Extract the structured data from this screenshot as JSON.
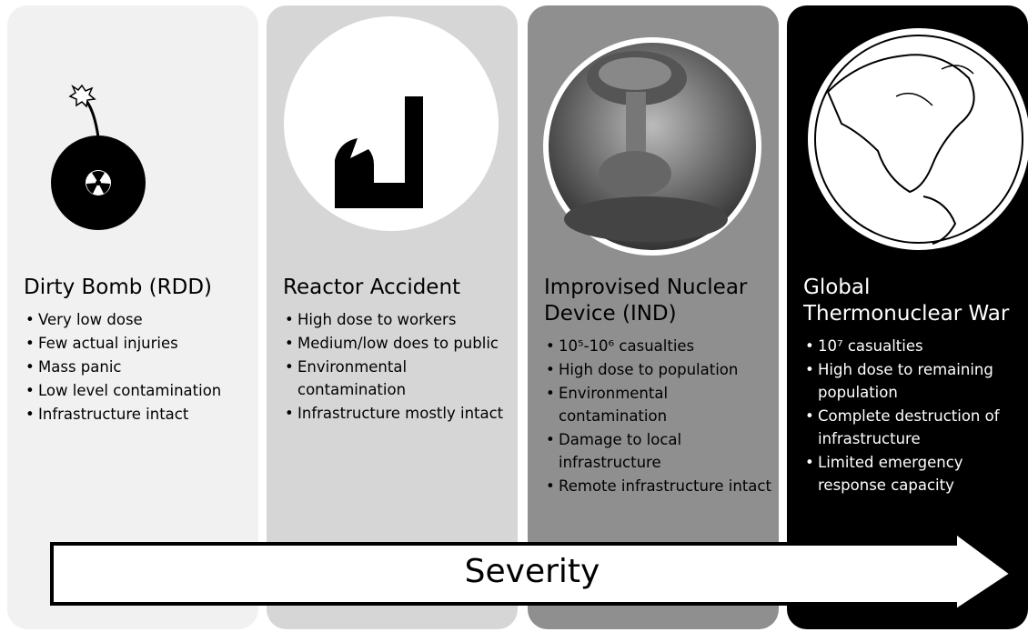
{
  "panels": [
    {
      "title": "Dirty Bomb (RDD)",
      "bullets": [
        "Very low dose",
        "Few actual injuries",
        "Mass panic",
        "Low level contamination",
        "Infrastructure intact"
      ]
    },
    {
      "title": "Reactor Accident",
      "bullets": [
        "High dose to workers",
        "Medium/low does to public",
        "Environmental contamination",
        "Infrastructure mostly intact"
      ]
    },
    {
      "title": "Improvised Nuclear Device (IND)",
      "bullets": [
        "10⁵-10⁶ casualties",
        "High dose to population",
        "Environmental contamination",
        "Damage to local infrastructure",
        "Remote infrastructure intact"
      ]
    },
    {
      "title": "Global Thermonuclear War",
      "bullets": [
        "10⁷ casualties",
        "High dose to remaining population",
        "Complete destruction of infrastructure",
        "Limited emergency response capacity"
      ]
    }
  ],
  "arrow": {
    "label": "Severity"
  }
}
